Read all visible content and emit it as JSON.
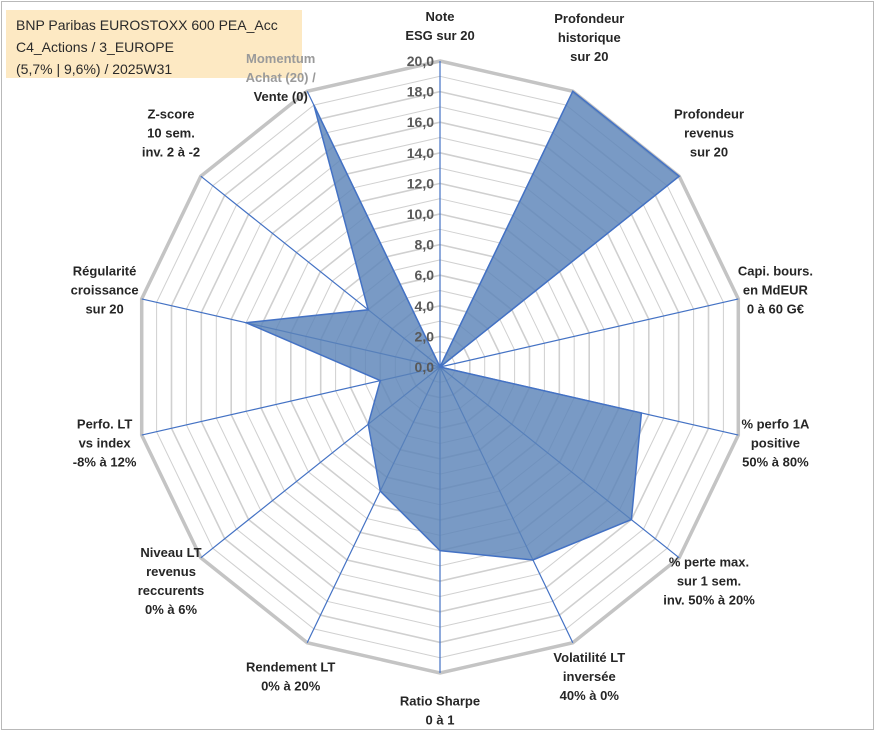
{
  "title_box": {
    "line1": "BNP Paribas EUROSTOXX 600 PEA_Acc",
    "line2": "C4_Actions / 3_EUROPE",
    "line3": "(5,7% | 9,6%) / 2025W31"
  },
  "chart_data": {
    "type": "radar",
    "rmin": 0,
    "rmax": 20,
    "tick_labels": [
      "0,0",
      "2,0",
      "4,0",
      "6,0",
      "8,0",
      "10,0",
      "12,0",
      "14,0",
      "16,0",
      "18,0",
      "20,0"
    ],
    "axes": [
      {
        "lines": [
          "Note",
          "ESG sur 20"
        ],
        "value": 0
      },
      {
        "lines": [
          "Profondeur",
          "historique",
          "sur 20"
        ],
        "value": 20
      },
      {
        "lines": [
          "Profondeur",
          "revenus",
          "sur 20"
        ],
        "value": 20
      },
      {
        "lines": [
          "Capi. bours.",
          "en MdEUR",
          "0 à 60 G€"
        ],
        "value": 0
      },
      {
        "lines": [
          "% perfo 1A",
          "positive",
          "50% à 80%"
        ],
        "value": 13.5
      },
      {
        "lines": [
          "% perte max.",
          "sur 1 sem.",
          "inv. 50% à 20%"
        ],
        "value": 16
      },
      {
        "lines": [
          "Volatilité LT",
          "inversée",
          "40% à 0%"
        ],
        "value": 14
      },
      {
        "lines": [
          "Ratio Sharpe",
          "0 à 1"
        ],
        "value": 12
      },
      {
        "lines": [
          "Rendement LT",
          "0% à 20%"
        ],
        "value": 9
      },
      {
        "lines": [
          "Niveau LT",
          "revenus",
          "reccurents",
          "0% à 6%"
        ],
        "value": 6
      },
      {
        "lines": [
          "Perfo. LT",
          "vs index",
          "-8% à 12%"
        ],
        "value": 4
      },
      {
        "lines": [
          "Régularité",
          "croissance",
          "sur 20"
        ],
        "value": 13
      },
      {
        "lines": [
          "Z-score",
          "10 sem.",
          "inv. 2 à -2"
        ],
        "value": 6
      },
      {
        "lines": [
          "Momentum",
          "Achat (20) /",
          "Vente (0)"
        ],
        "value": 19
      }
    ],
    "colors": {
      "fill": "#5b84b8",
      "fill_opacity": 0.82,
      "stroke": "#4472c4",
      "grid": "#d0d0d0",
      "axis": "#4472c4",
      "title_bg": "#fde9c3"
    }
  }
}
